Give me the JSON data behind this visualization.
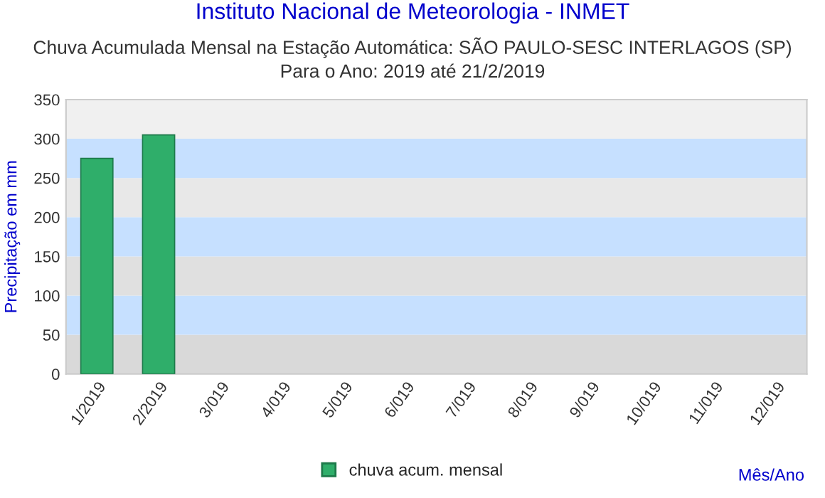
{
  "chart_data": {
    "type": "bar",
    "title": "Instituto Nacional de Meteorologia - INMET",
    "subtitle": "Chuva Acumulada Mensal na Estação Automática: SÃO PAULO-SESC INTERLAGOS (SP)\nPara o Ano: 2019 até 21/2/2019",
    "xlabel": "Mês/Ano",
    "ylabel": "Precipitação em mm",
    "categories": [
      "1/2019",
      "2/2019",
      "3/019",
      "4/019",
      "5/019",
      "6/019",
      "7/019",
      "8/019",
      "9/019",
      "10/019",
      "11/019",
      "12/019"
    ],
    "series": [
      {
        "name": "chuva acum. mensal",
        "color": "#2fae6a",
        "values": [
          275,
          305,
          null,
          null,
          null,
          null,
          null,
          null,
          null,
          null,
          null,
          null
        ]
      }
    ],
    "ylim": [
      0,
      350
    ],
    "yticks": [
      0,
      50,
      100,
      150,
      200,
      250,
      300,
      350
    ],
    "bands": [
      {
        "axis": "y",
        "from": 0,
        "to": 50,
        "color": "#d9d9d9"
      },
      {
        "axis": "y",
        "from": 50,
        "to": 100,
        "color": "#c6e0ff"
      },
      {
        "axis": "y",
        "from": 100,
        "to": 150,
        "color": "#e0e0e0"
      },
      {
        "axis": "y",
        "from": 150,
        "to": 200,
        "color": "#c6e0ff"
      },
      {
        "axis": "y",
        "from": 200,
        "to": 250,
        "color": "#e8e8e8"
      },
      {
        "axis": "y",
        "from": 250,
        "to": 300,
        "color": "#c6e0ff"
      },
      {
        "axis": "y",
        "from": 300,
        "to": 350,
        "color": "#f0f0f0"
      }
    ],
    "legend": "bottom",
    "grid": false
  }
}
